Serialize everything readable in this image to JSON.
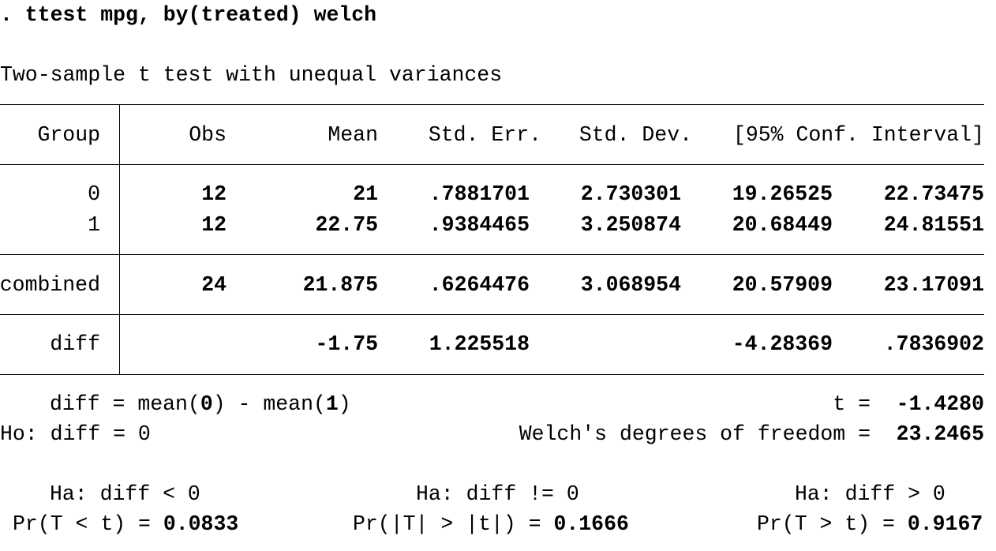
{
  "command": ". ttest mpg, by(treated) welch",
  "title": "Two-sample t test with unequal variances",
  "table": {
    "header": [
      "Group",
      "Obs",
      "Mean",
      "Std. Err.",
      "Std. Dev.",
      "[95% Conf. Interval]"
    ],
    "rows": [
      [
        "0",
        "12",
        "21",
        ".7881701",
        "2.730301",
        "19.26525",
        "22.73475"
      ],
      [
        "1",
        "12",
        "22.75",
        ".9384465",
        "3.250874",
        "20.68449",
        "24.81551"
      ],
      [
        "combined",
        "24",
        "21.875",
        ".6264476",
        "3.068954",
        "20.57909",
        "23.17091"
      ],
      [
        "diff",
        null,
        "-1.75",
        "1.225518",
        null,
        "-4.28369",
        ".7836902"
      ]
    ]
  },
  "footer": {
    "diff_definition": {
      "prefix": "diff = mean(",
      "group_a": "0",
      "middle": ") - mean(",
      "group_b": "1",
      "suffix": ")"
    },
    "t_label": "t =",
    "t_value": "-1.4280",
    "null_hypothesis": "Ho: diff = 0",
    "df_label": "Welch's degrees of freedom =",
    "df_value": "23.2465",
    "alternatives": [
      {
        "label": "Ha: diff < 0",
        "p_label": "Pr(T < t) = ",
        "p_value": "0.0833"
      },
      {
        "label": "Ha: diff != 0",
        "p_label": "Pr(|T| > |t|) = ",
        "p_value": "0.1666"
      },
      {
        "label": "Ha: diff > 0",
        "p_label": "Pr(T > t) = ",
        "p_value": "0.9167"
      }
    ]
  }
}
